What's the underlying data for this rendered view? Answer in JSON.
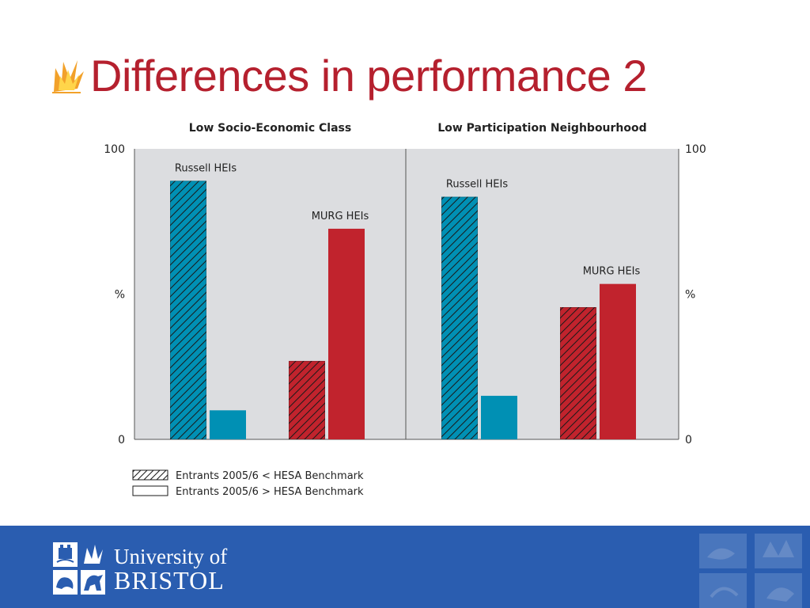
{
  "slide": {
    "title": "Differences in performance 2"
  },
  "logo": {
    "line1": "University of",
    "line2": "BRISTOL"
  },
  "colors": {
    "title": "#b5202e",
    "blue": "#0090b4",
    "red": "#c1232d",
    "panel": "#dcdde0",
    "footer": "#2a5db0"
  },
  "chart_data": {
    "type": "bar",
    "panels": [
      {
        "title": "Low Socio-Economic Class",
        "groups": [
          {
            "label": "Russell HEIs",
            "color": "blue",
            "values": [
              {
                "series": "Entrants 2005/6 < HESA Benchmark",
                "value": 89
              },
              {
                "series": "Entrants 2005/6 > HESA Benchmark",
                "value": 10
              }
            ]
          },
          {
            "label": "MURG HEIs",
            "color": "red",
            "values": [
              {
                "series": "Entrants 2005/6 < HESA Benchmark",
                "value": 27
              },
              {
                "series": "Entrants 2005/6 > HESA Benchmark",
                "value": 72.5
              }
            ]
          }
        ]
      },
      {
        "title": "Low Participation Neighbourhood",
        "groups": [
          {
            "label": "Russell HEIs",
            "color": "blue",
            "values": [
              {
                "series": "Entrants 2005/6 < HESA Benchmark",
                "value": 83.5
              },
              {
                "series": "Entrants 2005/6 > HESA Benchmark",
                "value": 15
              }
            ]
          },
          {
            "label": "MURG HEIs",
            "color": "red",
            "values": [
              {
                "series": "Entrants 2005/6 < HESA Benchmark",
                "value": 45.5
              },
              {
                "series": "Entrants 2005/6 > HESA Benchmark",
                "value": 53.5
              }
            ]
          }
        ]
      }
    ],
    "y_axis": {
      "label": "%",
      "min_label": "0",
      "max_label": "100",
      "ylim": [
        0,
        100
      ]
    },
    "legend": [
      {
        "label": "Entrants 2005/6 < HESA Benchmark",
        "pattern": "hatched"
      },
      {
        "label": "Entrants 2005/6 > HESA Benchmark",
        "pattern": "solid"
      }
    ]
  }
}
